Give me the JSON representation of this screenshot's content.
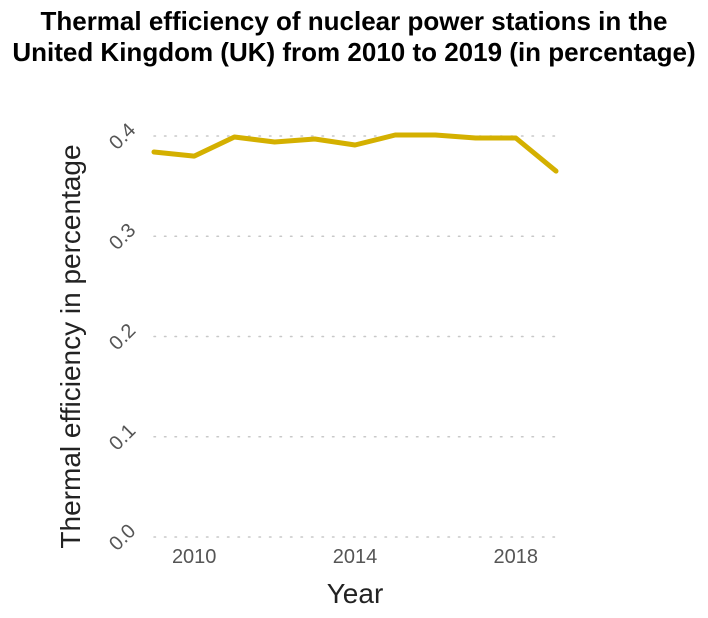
{
  "chart_data": {
    "type": "line",
    "title": "Thermal efficiency of nuclear power stations in the United Kingdom (UK) from 2010 to 2019 (in percentage)",
    "xlabel": "Year",
    "ylabel": "Thermal efficiency in percentage",
    "x": [
      2009,
      2010,
      2011,
      2012,
      2013,
      2014,
      2015,
      2016,
      2017,
      2018,
      2019
    ],
    "series": [
      {
        "name": "",
        "values": [
          0.384,
          0.38,
          0.399,
          0.394,
          0.397,
          0.391,
          0.401,
          0.401,
          0.398,
          0.398,
          0.365
        ]
      }
    ],
    "xticks": [
      "2010",
      "2014",
      "2018"
    ],
    "yticks": [
      "0.0",
      "0.1",
      "0.2",
      "0.3",
      "0.4"
    ],
    "xlim": [
      2009,
      2019
    ],
    "ylim": [
      0,
      0.4
    ],
    "grid": true,
    "line_color": "#d4b000"
  }
}
